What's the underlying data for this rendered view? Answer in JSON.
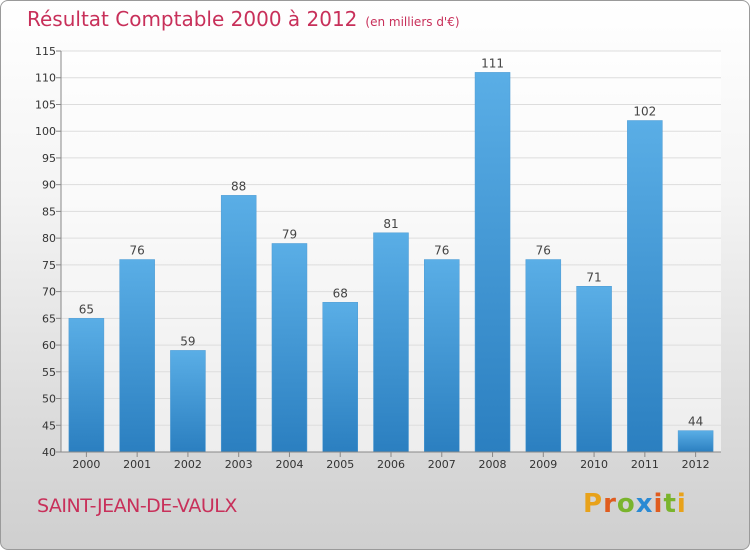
{
  "header": {
    "title": "Résultat Comptable 2000 à 2012",
    "subtitle": "(en milliers d'€)"
  },
  "footer": {
    "town": "SAINT-JEAN-DE-VAULX",
    "logo": "Proxiti"
  },
  "colors": {
    "title": "#c8305a",
    "bar_top": "#5aaee6",
    "bar_bottom": "#2b7fc0",
    "logo_letters": [
      "#e8a21a",
      "#e05c1e",
      "#7ab42c",
      "#2a8ad4",
      "#e05c1e",
      "#7ab42c",
      "#e8a21a"
    ]
  },
  "chart_data": {
    "type": "bar",
    "title": "Résultat Comptable 2000 à 2012",
    "xlabel": "",
    "ylabel": "",
    "categories": [
      "2000",
      "2001",
      "2002",
      "2003",
      "2004",
      "2005",
      "2006",
      "2007",
      "2008",
      "2009",
      "2010",
      "2011",
      "2012"
    ],
    "values": [
      65,
      76,
      59,
      88,
      79,
      68,
      81,
      76,
      111,
      76,
      71,
      102,
      44
    ],
    "ylim": [
      40,
      115
    ],
    "yticks": [
      40,
      45,
      50,
      55,
      60,
      65,
      70,
      75,
      80,
      85,
      90,
      95,
      100,
      105,
      110,
      115
    ],
    "grid": true
  }
}
